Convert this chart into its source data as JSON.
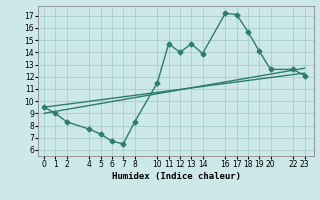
{
  "bg_color": "#cce8e8",
  "line_color": "#2d7d6e",
  "grid_color": "#aacccc",
  "x_ticks": [
    0,
    1,
    2,
    4,
    5,
    6,
    7,
    8,
    10,
    11,
    12,
    13,
    14,
    16,
    17,
    18,
    19,
    20,
    22,
    23
  ],
  "y_ticks": [
    6,
    7,
    8,
    9,
    10,
    11,
    12,
    13,
    14,
    15,
    16,
    17
  ],
  "xlabel": "Humidex (Indice chaleur)",
  "xlim": [
    -0.5,
    23.8
  ],
  "ylim": [
    5.5,
    17.8
  ],
  "line1_x": [
    0,
    1,
    2,
    4,
    5,
    6,
    7,
    8,
    10,
    11,
    12,
    13,
    14,
    16,
    17,
    18,
    19,
    20,
    22,
    23
  ],
  "line1_y": [
    9.5,
    9.0,
    8.3,
    7.7,
    7.3,
    6.7,
    6.5,
    8.3,
    11.5,
    14.7,
    14.0,
    14.7,
    13.9,
    17.2,
    17.1,
    15.7,
    14.1,
    12.6,
    12.6,
    12.1
  ],
  "line2_x": [
    0,
    23
  ],
  "line2_y": [
    9.5,
    12.3
  ],
  "line3_x": [
    0,
    23
  ],
  "line3_y": [
    9.0,
    12.7
  ],
  "marker": "D",
  "marker_size": 2.5,
  "linewidth": 1.0
}
